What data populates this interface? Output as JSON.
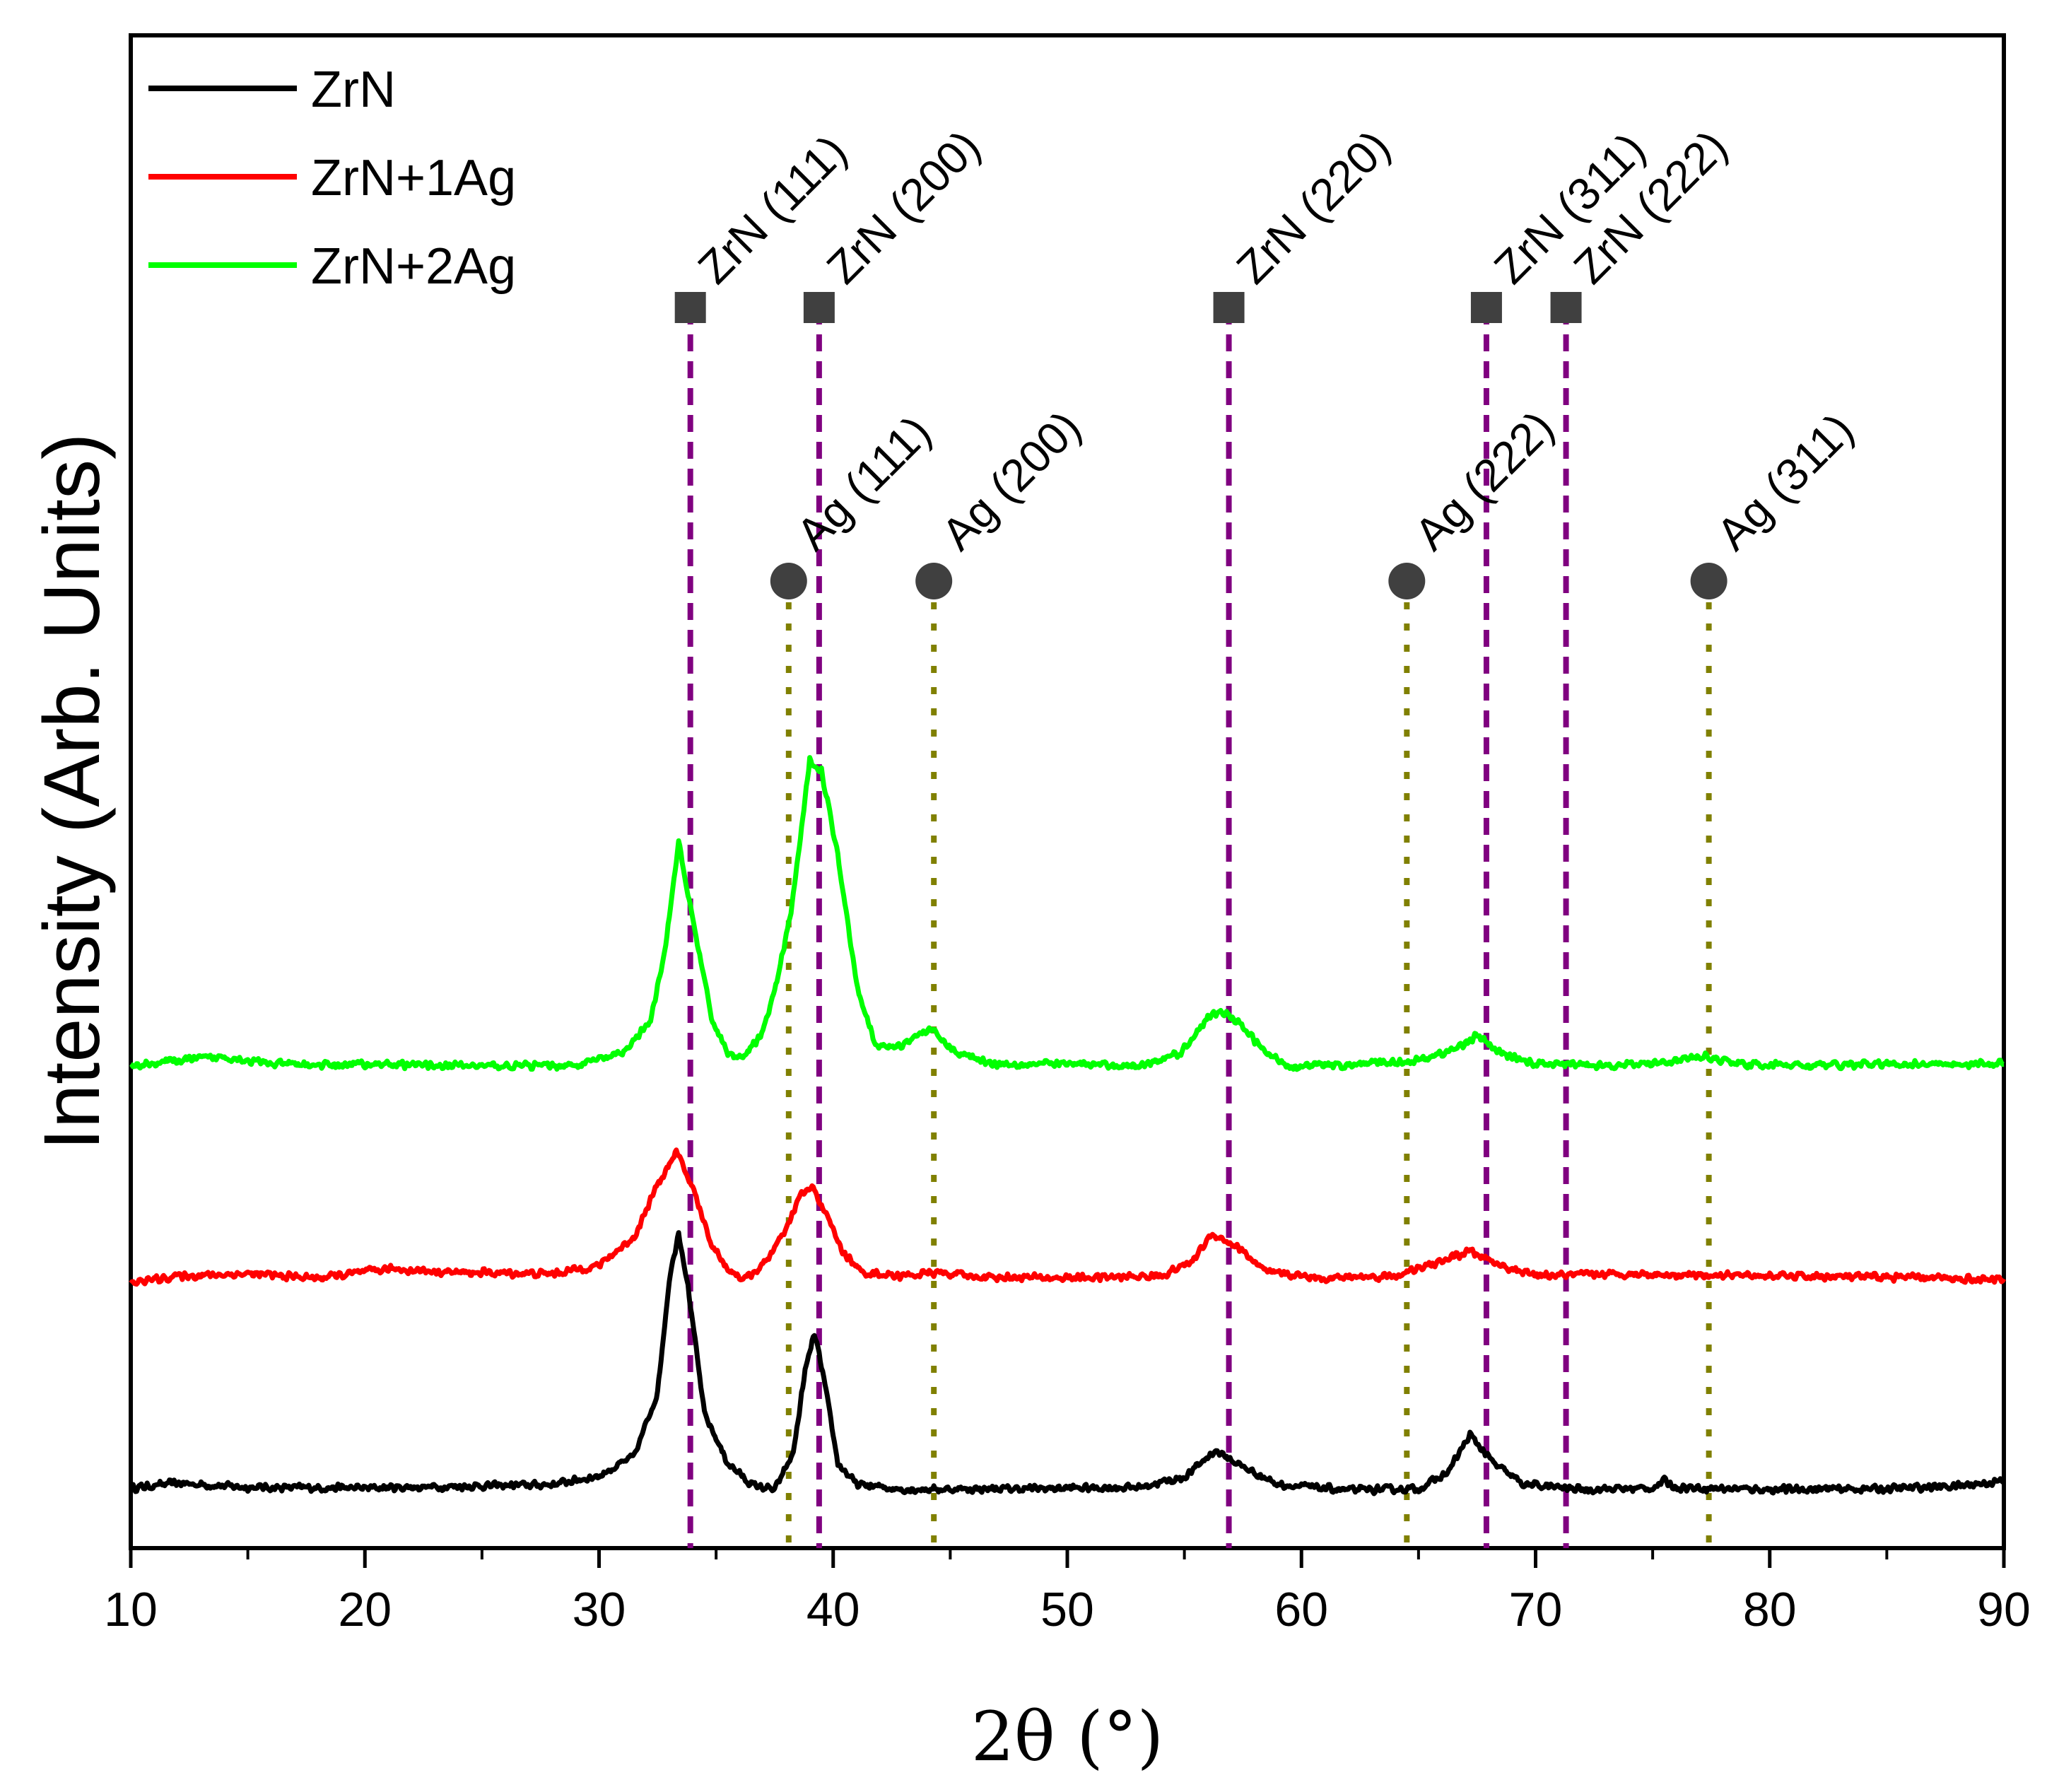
{
  "chart_data": {
    "type": "line",
    "xlabel": "2θ (°)",
    "ylabel": "Intensity (Arb. Units)",
    "xlim": [
      10,
      90
    ],
    "ylim": [
      0,
      1
    ],
    "x_ticks": [
      10,
      20,
      30,
      40,
      50,
      60,
      70,
      80,
      90
    ],
    "x_tick_labels": [
      "10",
      "20",
      "30",
      "40",
      "50",
      "60",
      "70",
      "80",
      "90"
    ],
    "grid": false,
    "legend_position": "top-left",
    "series": [
      {
        "name": "ZrN",
        "color": "#000000",
        "baseline": 0.045,
        "noise": 0.006,
        "x": [
          10,
          12,
          15,
          20,
          25,
          28,
          30,
          31.5,
          32.5,
          33.0,
          33.4,
          33.8,
          34.5,
          35.5,
          36.5,
          37.5,
          38.3,
          38.8,
          39.2,
          39.6,
          40.2,
          41,
          43,
          48,
          53,
          55,
          56.3,
          57.5,
          59,
          62,
          65,
          66.2,
          67.2,
          68.2,
          69.5,
          72,
          75,
          75.5,
          76,
          80,
          85,
          88,
          90
        ],
        "values": [
          0.045,
          0.052,
          0.046,
          0.045,
          0.048,
          0.05,
          0.062,
          0.09,
          0.18,
          0.34,
          0.408,
          0.33,
          0.15,
          0.08,
          0.05,
          0.042,
          0.095,
          0.21,
          0.264,
          0.2,
          0.08,
          0.05,
          0.043,
          0.044,
          0.046,
          0.06,
          0.098,
          0.075,
          0.05,
          0.042,
          0.044,
          0.065,
          0.12,
          0.08,
          0.05,
          0.043,
          0.045,
          0.055,
          0.046,
          0.043,
          0.044,
          0.048,
          0.055
        ]
      },
      {
        "name": "ZrN+1Ag",
        "color": "#ff0000",
        "baseline": 0.34,
        "noise": 0.006,
        "x": [
          10,
          12,
          15,
          18,
          21,
          24,
          28,
          30,
          31.5,
          32.5,
          33.3,
          34.0,
          34.8,
          35.5,
          36.2,
          37,
          38,
          38.6,
          39.1,
          39.6,
          40.4,
          41.2,
          43,
          44.5,
          46,
          50,
          54,
          55.3,
          56.2,
          57.3,
          58.5,
          61,
          64,
          65.5,
          67.2,
          68.5,
          70,
          74,
          78,
          82,
          86,
          90
        ],
        "values": [
          0.335,
          0.345,
          0.348,
          0.342,
          0.355,
          0.35,
          0.348,
          0.36,
          0.4,
          0.475,
          0.52,
          0.47,
          0.39,
          0.355,
          0.34,
          0.36,
          0.41,
          0.46,
          0.47,
          0.44,
          0.38,
          0.35,
          0.345,
          0.35,
          0.344,
          0.342,
          0.345,
          0.365,
          0.405,
          0.385,
          0.35,
          0.342,
          0.345,
          0.36,
          0.38,
          0.36,
          0.345,
          0.348,
          0.346,
          0.344,
          0.343,
          0.34
        ]
      },
      {
        "name": "ZrN+2Ag",
        "color": "#00ff00",
        "baseline": 0.64,
        "noise": 0.006,
        "x": [
          10,
          12,
          14,
          16,
          18,
          20,
          25,
          29,
          31,
          32.2,
          32.8,
          33.4,
          34.0,
          34.8,
          35.5,
          36.2,
          37,
          37.6,
          38.2,
          38.7,
          39.0,
          39.5,
          40.2,
          41.0,
          41.8,
          42.8,
          44.1,
          45.3,
          47,
          50,
          53,
          54.8,
          56.0,
          56.6,
          57.4,
          58.5,
          59.5,
          62,
          65,
          66.5,
          67.5,
          68.5,
          70,
          74,
          77.2,
          79,
          82,
          86,
          90
        ],
        "values": [
          0.642,
          0.65,
          0.655,
          0.645,
          0.643,
          0.645,
          0.642,
          0.643,
          0.66,
          0.705,
          0.8,
          0.958,
          0.85,
          0.71,
          0.66,
          0.655,
          0.69,
          0.76,
          0.86,
          0.99,
          1.075,
          1.06,
          0.94,
          0.76,
          0.67,
          0.67,
          0.695,
          0.66,
          0.645,
          0.645,
          0.642,
          0.66,
          0.71,
          0.72,
          0.7,
          0.66,
          0.642,
          0.643,
          0.65,
          0.665,
          0.685,
          0.66,
          0.645,
          0.643,
          0.655,
          0.644,
          0.643,
          0.645,
          0.645
        ]
      }
    ],
    "reference_lines": {
      "ZrN": {
        "marker": "square",
        "line_color": "#800080",
        "peaks": [
          {
            "position": 33.9,
            "label": "ZrN (111)"
          },
          {
            "position": 39.4,
            "label": "ZrN (200)"
          },
          {
            "position": 56.9,
            "label": "ZrN (220)"
          },
          {
            "position": 67.9,
            "label": "ZrN (311)"
          },
          {
            "position": 71.3,
            "label": "ZrN (222)"
          }
        ]
      },
      "Ag": {
        "marker": "circle",
        "line_color": "#808000",
        "peaks": [
          {
            "position": 38.1,
            "label": "Ag (111)"
          },
          {
            "position": 44.3,
            "label": "Ag (200)"
          },
          {
            "position": 64.5,
            "label": "Ag (222)"
          },
          {
            "position": 77.4,
            "label": "Ag (311)"
          }
        ]
      }
    },
    "marker_color": "#404040"
  }
}
